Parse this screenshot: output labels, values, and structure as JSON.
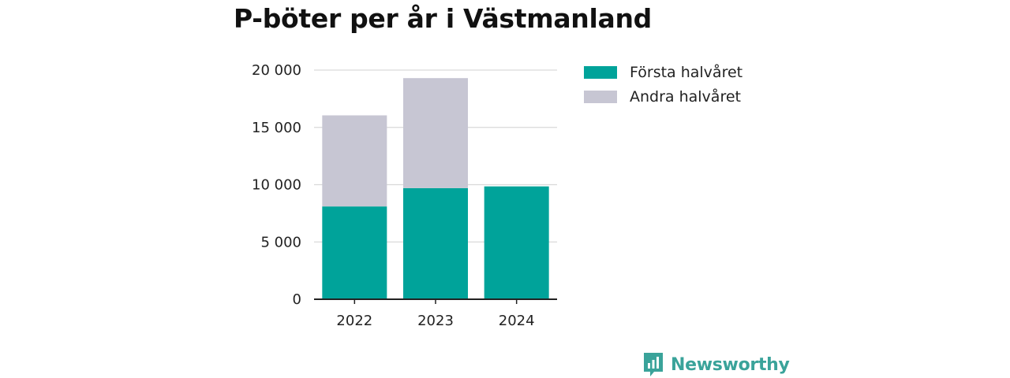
{
  "title": "P-böter per år i Västmanland",
  "brand": {
    "name": "Newsworthy",
    "icon": "newsworthy-logo-icon",
    "color": "#3aa39a"
  },
  "chart_data": {
    "type": "bar",
    "stacked": true,
    "title": "P-böter per år i Västmanland",
    "xlabel": "",
    "ylabel": "",
    "categories": [
      "2022",
      "2023",
      "2024"
    ],
    "series": [
      {
        "name": "Första halvåret",
        "color": "#00a39a",
        "values": [
          8100,
          9700,
          9850
        ]
      },
      {
        "name": "Andra halvåret",
        "color": "#c7c6d3",
        "values": [
          7950,
          9600,
          0
        ]
      }
    ],
    "ylim": [
      0,
      20000
    ],
    "yticks": [
      0,
      5000,
      10000,
      15000,
      20000
    ],
    "ytick_labels": [
      "0",
      "5 000",
      "10 000",
      "15 000",
      "20 000"
    ],
    "grid": true,
    "legend_position": "right"
  }
}
